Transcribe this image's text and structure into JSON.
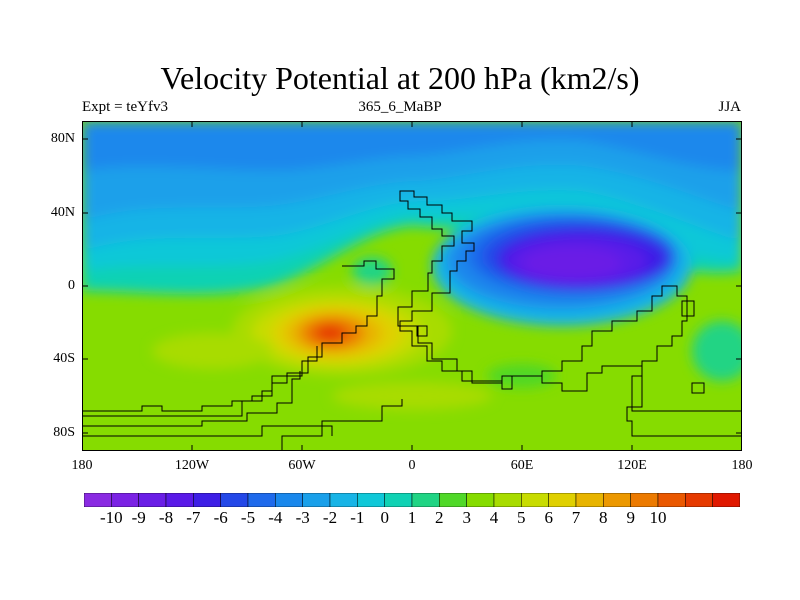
{
  "title": "Velocity Potential at 200 hPa (km2/s)",
  "subtitle_left": "Expt = teYfv3",
  "subtitle_center": "365_6_MaBP",
  "subtitle_right": "JJA",
  "lat_labels": [
    "80N",
    "40N",
    "0",
    "40S",
    "80S"
  ],
  "lon_labels": [
    "180",
    "120W",
    "60W",
    "0",
    "60E",
    "120E",
    "180"
  ],
  "colorbar": {
    "labels": [
      "-10",
      "-9",
      "-8",
      "-7",
      "-6",
      "-5",
      "-4",
      "-3",
      "-2",
      "-1",
      "0",
      "1",
      "2",
      "3",
      "4",
      "5",
      "6",
      "7",
      "8",
      "9",
      "10"
    ],
    "colors": [
      "#8a2be2",
      "#7b22e4",
      "#6a1ee6",
      "#5a1ae8",
      "#3e1fe6",
      "#2448e8",
      "#1f6aeb",
      "#1a88ec",
      "#1aa0ea",
      "#18b4e6",
      "#10c8d8",
      "#10d2b4",
      "#20d484",
      "#50d828",
      "#86dc00",
      "#a8dc00",
      "#c8dc00",
      "#e0d000",
      "#e8b400",
      "#ec9800",
      "#ec7a00",
      "#ea5800",
      "#e63a00",
      "#e01800"
    ]
  },
  "chart_data": {
    "type": "heatmap",
    "title": "Velocity Potential at 200 hPa (km2/s)",
    "subtitle": "365_6_MaBP",
    "variable_units": "km2/s",
    "season": "JJA",
    "experiment": "teYfv3",
    "x_range": [
      -180,
      180
    ],
    "y_range": [
      -90,
      90
    ],
    "x_ticks": [
      "180",
      "120W",
      "60W",
      "0",
      "60E",
      "120E",
      "180"
    ],
    "y_ticks": [
      "80N",
      "40N",
      "0",
      "40S",
      "80S"
    ],
    "color_levels": [
      -10,
      -9,
      -8,
      -7,
      -6,
      -5,
      -4,
      -3,
      -2,
      -1,
      0,
      1,
      2,
      3,
      4,
      5,
      6,
      7,
      8,
      9,
      10
    ],
    "features": [
      {
        "name": "minimum",
        "lon": 75,
        "lat": 5,
        "value": -10
      },
      {
        "name": "maximum",
        "lon": -38,
        "lat": -25,
        "value": 9.5
      },
      {
        "name": "high-latitude north",
        "lon": 0,
        "lat": 75,
        "value": -3
      },
      {
        "name": "southern ocean",
        "lon": 0,
        "lat": -70,
        "value": 3
      }
    ]
  }
}
